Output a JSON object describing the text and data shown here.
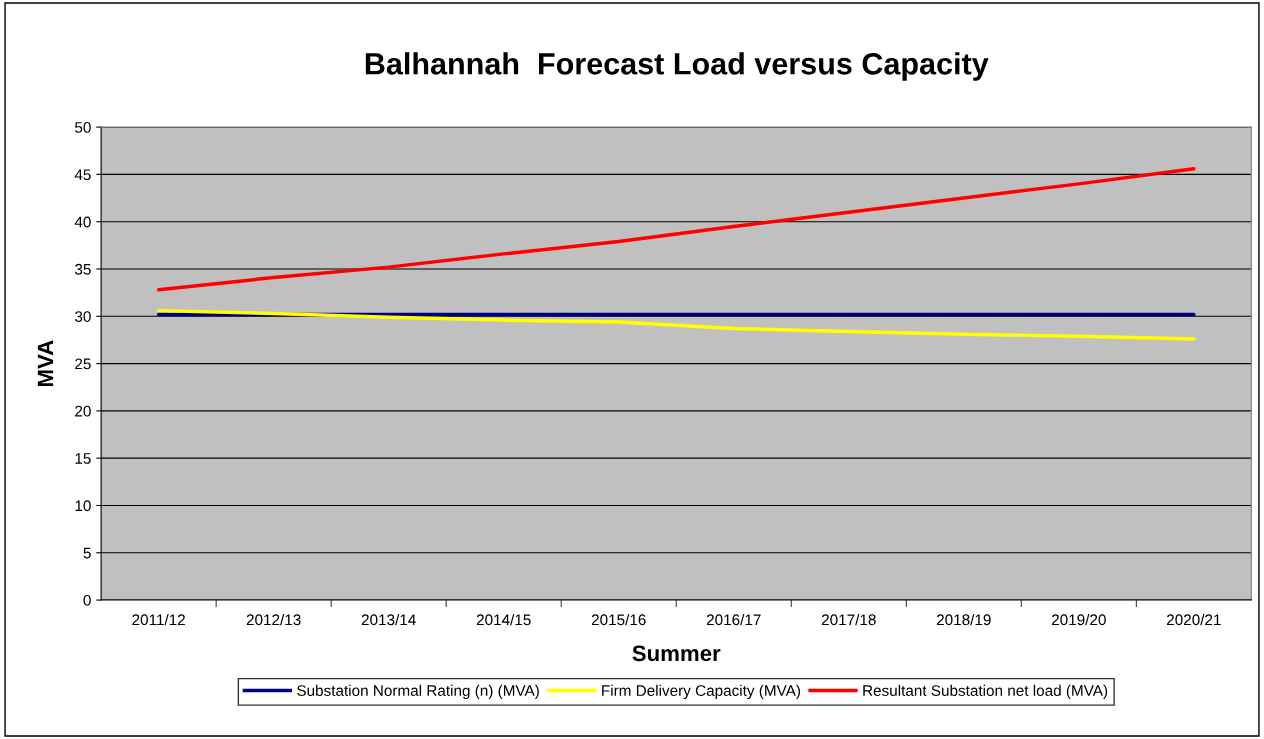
{
  "chart_data": {
    "type": "line",
    "title": "Balhannah  Forecast Load versus Capacity",
    "xlabel": "Summer",
    "ylabel": "MVA",
    "categories": [
      "2011/12",
      "2012/13",
      "2013/14",
      "2014/15",
      "2015/16",
      "2016/17",
      "2017/18",
      "2018/19",
      "2019/20",
      "2020/21"
    ],
    "series": [
      {
        "name": "Substation Normal Rating (n) (MVA)",
        "color": "#000080",
        "values": [
          30.2,
          30.2,
          30.2,
          30.2,
          30.2,
          30.2,
          30.2,
          30.2,
          30.2,
          30.2
        ]
      },
      {
        "name": "Firm Delivery Capacity (MVA)",
        "color": "#ffff00",
        "values": [
          30.6,
          30.3,
          29.9,
          29.6,
          29.4,
          28.7,
          28.4,
          28.1,
          27.9,
          27.6
        ]
      },
      {
        "name": "Resultant Substation net load (MVA)",
        "color": "#ff0000",
        "values": [
          32.8,
          34.1,
          35.2,
          36.6,
          37.9,
          39.5,
          41.0,
          42.5,
          44.0,
          45.6
        ]
      }
    ],
    "ylim": [
      0,
      50
    ],
    "yticks": [
      0,
      5,
      10,
      15,
      20,
      25,
      30,
      35,
      40,
      45,
      50
    ],
    "grid": "y",
    "legend": "bottom",
    "marker": "none",
    "line_style": "solid"
  }
}
